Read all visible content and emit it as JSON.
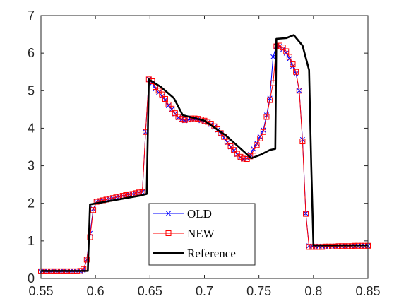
{
  "chart_data": {
    "type": "line",
    "title": "",
    "xlabel": "",
    "ylabel": "",
    "xlim": [
      0.55,
      0.85
    ],
    "ylim": [
      0,
      7
    ],
    "x_ticks": [
      0.55,
      0.6,
      0.65,
      0.7,
      0.75,
      0.8,
      0.85
    ],
    "x_tick_labels": [
      "0.55",
      "0.6",
      "0.65",
      "0.7",
      "0.75",
      "0.8",
      "0.85"
    ],
    "y_ticks": [
      0,
      1,
      2,
      3,
      4,
      5,
      6,
      7
    ],
    "y_tick_labels": [
      "0",
      "1",
      "2",
      "3",
      "4",
      "5",
      "6",
      "7"
    ],
    "grid": false,
    "legend_position": "bottom-center",
    "colors": {
      "old": "#0000ff",
      "new": "#ff0000",
      "reference": "#000000",
      "axis": "#262626"
    },
    "series": [
      {
        "name": "OLD",
        "marker": "x",
        "x": [
          0.55,
          0.553,
          0.556,
          0.559,
          0.562,
          0.565,
          0.568,
          0.571,
          0.574,
          0.577,
          0.58,
          0.583,
          0.586,
          0.589,
          0.592,
          0.595,
          0.598,
          0.601,
          0.604,
          0.607,
          0.61,
          0.613,
          0.616,
          0.619,
          0.622,
          0.625,
          0.628,
          0.631,
          0.634,
          0.637,
          0.64,
          0.643,
          0.646,
          0.649,
          0.652,
          0.655,
          0.658,
          0.661,
          0.664,
          0.667,
          0.67,
          0.673,
          0.676,
          0.679,
          0.682,
          0.685,
          0.688,
          0.691,
          0.694,
          0.697,
          0.7,
          0.703,
          0.706,
          0.709,
          0.712,
          0.715,
          0.718,
          0.721,
          0.724,
          0.727,
          0.73,
          0.733,
          0.736,
          0.739,
          0.742,
          0.745,
          0.748,
          0.751,
          0.754,
          0.757,
          0.76,
          0.763,
          0.766,
          0.769,
          0.772,
          0.775,
          0.778,
          0.781,
          0.784,
          0.787,
          0.79,
          0.793,
          0.796,
          0.799,
          0.802,
          0.805,
          0.808,
          0.811,
          0.814,
          0.817,
          0.82,
          0.823,
          0.826,
          0.829,
          0.832,
          0.835,
          0.838,
          0.841,
          0.844,
          0.847,
          0.85
        ],
        "y": [
          0.18,
          0.18,
          0.18,
          0.18,
          0.18,
          0.18,
          0.18,
          0.18,
          0.18,
          0.18,
          0.18,
          0.18,
          0.18,
          0.2,
          0.5,
          1.2,
          1.85,
          2.04,
          2.06,
          2.08,
          2.1,
          2.12,
          2.14,
          2.16,
          2.18,
          2.2,
          2.22,
          2.24,
          2.25,
          2.27,
          2.29,
          2.3,
          3.9,
          5.3,
          5.2,
          5.05,
          4.95,
          4.85,
          4.75,
          4.6,
          4.5,
          4.38,
          4.28,
          4.23,
          4.2,
          4.22,
          4.23,
          4.23,
          4.22,
          4.2,
          4.18,
          4.15,
          4.1,
          4.03,
          3.95,
          3.85,
          3.75,
          3.62,
          3.5,
          3.4,
          3.3,
          3.22,
          3.17,
          3.2,
          3.3,
          3.45,
          3.6,
          3.78,
          3.95,
          4.35,
          4.8,
          5.9,
          6.18,
          6.18,
          6.1,
          6.0,
          5.85,
          5.65,
          5.45,
          5.0,
          3.7,
          1.73,
          0.87,
          0.86,
          0.86,
          0.86,
          0.86,
          0.86,
          0.86,
          0.86,
          0.87,
          0.87,
          0.87,
          0.87,
          0.87,
          0.87,
          0.87,
          0.87,
          0.87,
          0.87,
          0.87
        ]
      },
      {
        "name": "NEW",
        "marker": "square",
        "x": [
          0.55,
          0.553,
          0.556,
          0.559,
          0.562,
          0.565,
          0.568,
          0.571,
          0.574,
          0.577,
          0.58,
          0.583,
          0.586,
          0.589,
          0.592,
          0.595,
          0.598,
          0.601,
          0.604,
          0.607,
          0.61,
          0.613,
          0.616,
          0.619,
          0.622,
          0.625,
          0.628,
          0.631,
          0.634,
          0.637,
          0.64,
          0.643,
          0.646,
          0.649,
          0.652,
          0.655,
          0.658,
          0.661,
          0.664,
          0.667,
          0.67,
          0.673,
          0.676,
          0.679,
          0.682,
          0.685,
          0.688,
          0.691,
          0.694,
          0.697,
          0.7,
          0.703,
          0.706,
          0.709,
          0.712,
          0.715,
          0.718,
          0.721,
          0.724,
          0.727,
          0.73,
          0.733,
          0.736,
          0.739,
          0.742,
          0.745,
          0.748,
          0.751,
          0.754,
          0.757,
          0.76,
          0.763,
          0.766,
          0.769,
          0.772,
          0.775,
          0.778,
          0.781,
          0.784,
          0.787,
          0.79,
          0.793,
          0.796,
          0.799,
          0.802,
          0.805,
          0.808,
          0.811,
          0.814,
          0.817,
          0.82,
          0.823,
          0.826,
          0.829,
          0.832,
          0.835,
          0.838,
          0.841,
          0.844,
          0.847,
          0.85
        ],
        "y": [
          0.19,
          0.19,
          0.19,
          0.19,
          0.19,
          0.19,
          0.19,
          0.19,
          0.19,
          0.19,
          0.19,
          0.19,
          0.2,
          0.25,
          0.5,
          1.1,
          1.82,
          2.04,
          2.06,
          2.08,
          2.1,
          2.12,
          2.14,
          2.16,
          2.18,
          2.2,
          2.22,
          2.24,
          2.25,
          2.27,
          2.29,
          2.3,
          3.9,
          5.3,
          5.25,
          5.1,
          5.0,
          4.9,
          4.78,
          4.63,
          4.52,
          4.4,
          4.3,
          4.25,
          4.22,
          4.24,
          4.26,
          4.26,
          4.25,
          4.23,
          4.2,
          4.17,
          4.12,
          4.05,
          3.97,
          3.87,
          3.77,
          3.64,
          3.52,
          3.42,
          3.32,
          3.24,
          3.19,
          3.18,
          3.25,
          3.4,
          3.55,
          3.73,
          3.9,
          4.3,
          4.75,
          5.2,
          6.18,
          6.2,
          6.15,
          6.05,
          5.9,
          5.7,
          5.5,
          5.0,
          3.65,
          1.72,
          0.84,
          0.84,
          0.84,
          0.84,
          0.84,
          0.85,
          0.85,
          0.85,
          0.85,
          0.86,
          0.86,
          0.86,
          0.86,
          0.86,
          0.87,
          0.87,
          0.87,
          0.87,
          0.87
        ]
      },
      {
        "name": "Reference",
        "marker": "none",
        "x": [
          0.55,
          0.593,
          0.595,
          0.64,
          0.647,
          0.649,
          0.66,
          0.672,
          0.68,
          0.7,
          0.72,
          0.743,
          0.752,
          0.76,
          0.765,
          0.766,
          0.775,
          0.782,
          0.79,
          0.796,
          0.798,
          0.8,
          0.85
        ],
        "y": [
          0.2,
          0.2,
          1.97,
          2.2,
          2.25,
          5.3,
          5.1,
          4.8,
          4.35,
          4.2,
          3.8,
          3.2,
          3.3,
          3.42,
          3.45,
          6.38,
          6.4,
          6.48,
          6.2,
          5.55,
          3.0,
          0.88,
          0.88
        ]
      }
    ]
  }
}
